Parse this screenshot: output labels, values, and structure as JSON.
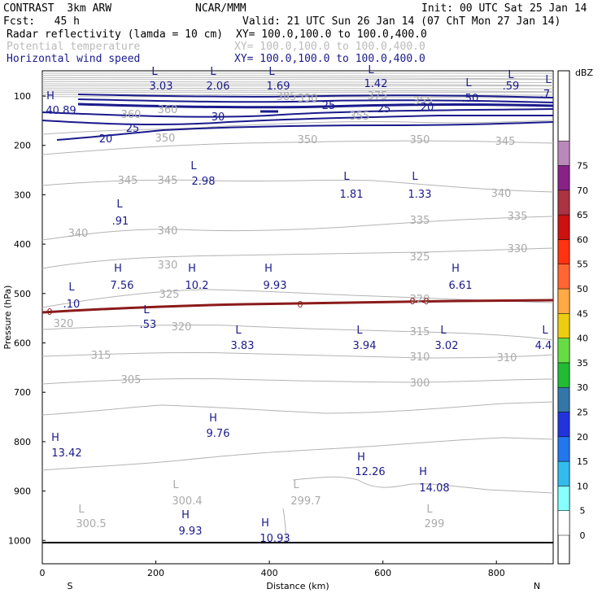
{
  "header": {
    "model": "CONTRAST  3km ARW",
    "org": "NCAR/MMM",
    "init": "Init: 00 UTC Sat 25 Jan 14",
    "fcst": "Fcst:   45 h",
    "valid": "Valid: 21 UTC Sun 26 Jan 14 (07 ChT Mon 27 Jan 14)",
    "field1": "Radar reflectivity (lamda = 10 cm)",
    "xy1": "XY= 100.0,100.0 to 100.0,400.0",
    "field2": "Potential temperature",
    "xy2": "XY= 100.0,100.0 to 100.0,400.0",
    "field3": "Horizontal wind speed",
    "xy3": "XY= 100.0,100.0 to 100.0,400.0"
  },
  "colorbar": {
    "unit": "dBZ",
    "levels": [
      "0",
      "5",
      "10",
      "15",
      "20",
      "25",
      "30",
      "35",
      "40",
      "45",
      "50",
      "55",
      "60",
      "65",
      "70",
      "75"
    ],
    "colors": [
      "#ffffff",
      "#88ffff",
      "#33bbee",
      "#2277ee",
      "#2233dd",
      "#3377aa",
      "#22bb33",
      "#66dd44",
      "#eecc11",
      "#ffaa44",
      "#ff6633",
      "#ff3311",
      "#cc1111",
      "#aa3344",
      "#882288",
      "#bb88bb"
    ]
  },
  "chart_data": {
    "type": "contour",
    "xlabel": "Distance (km)",
    "ylabel": "Pressure (hPa)",
    "xlim": [
      0,
      900
    ],
    "x_ticks": [
      "0",
      "200",
      "400",
      "600",
      "800"
    ],
    "y_ticks": [
      "100",
      "200",
      "300",
      "400",
      "500",
      "600",
      "700",
      "800",
      "900",
      "1000"
    ],
    "x_endpoints": {
      "left": "S",
      "right": "N"
    },
    "wind_labels": [
      "20",
      "25",
      "30",
      "25",
      "25",
      "20"
    ],
    "theta_labels": [
      "385",
      "375",
      "350",
      "360",
      "355",
      "360",
      "355",
      "350",
      "350",
      "350",
      "345",
      "345",
      "345",
      "340",
      "340",
      "340",
      "335",
      "335",
      "330",
      "330",
      "325",
      "325",
      "320",
      "320",
      "320",
      "315",
      "315",
      "310",
      "310",
      "305",
      "300"
    ],
    "freezing_label": "0",
    "extrema": [
      {
        "type": "L",
        "value": "3.03"
      },
      {
        "type": "L",
        "value": "2.06"
      },
      {
        "type": "L",
        "value": "1.69"
      },
      {
        "type": "L",
        "value": "1.42"
      },
      {
        "type": "L",
        "value": ".59"
      },
      {
        "type": "L",
        "value": ".50"
      },
      {
        "type": "L",
        "value": ".7"
      },
      {
        "type": "H",
        "value": "40.89"
      },
      {
        "type": "L",
        "value": "2.98"
      },
      {
        "type": "L",
        "value": "1.81"
      },
      {
        "type": "L",
        "value": "1.33"
      },
      {
        "type": "L",
        "value": ".91"
      },
      {
        "type": "H",
        "value": "7.56"
      },
      {
        "type": "H",
        "value": "10.2"
      },
      {
        "type": "H",
        "value": "9.93"
      },
      {
        "type": "H",
        "value": "6.61"
      },
      {
        "type": "L",
        "value": ".10"
      },
      {
        "type": "L",
        "value": ".53"
      },
      {
        "type": "L",
        "value": "3.83"
      },
      {
        "type": "L",
        "value": "3.94"
      },
      {
        "type": "L",
        "value": "3.02"
      },
      {
        "type": "L",
        "value": "4.4"
      },
      {
        "type": "H",
        "value": "13.42"
      },
      {
        "type": "H",
        "value": "9.76"
      },
      {
        "type": "H",
        "value": "12.26"
      },
      {
        "type": "H",
        "value": "14.08"
      },
      {
        "type": "L",
        "value": "300.4"
      },
      {
        "type": "L",
        "value": "299.7"
      },
      {
        "type": "L",
        "value": "300.5"
      },
      {
        "type": "L",
        "value": "299"
      },
      {
        "type": "H",
        "value": "9.93"
      },
      {
        "type": "H",
        "value": "10.93"
      }
    ]
  }
}
